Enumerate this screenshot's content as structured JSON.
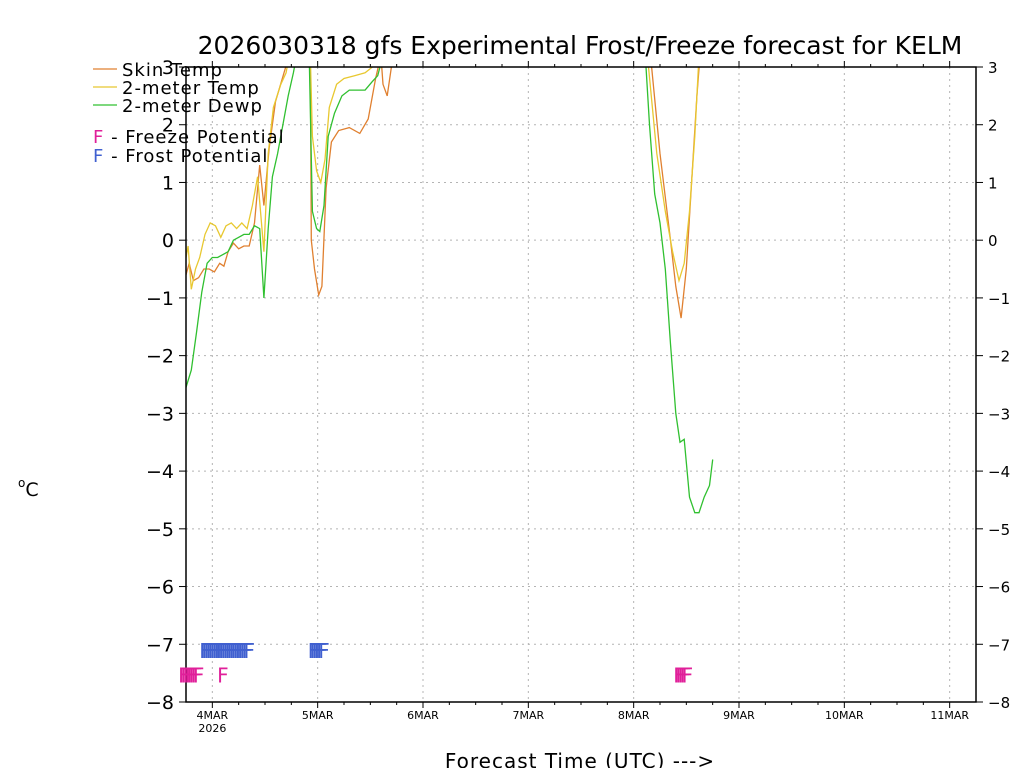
{
  "chart_data": {
    "type": "line",
    "title": "2026030318 gfs Experimental Frost/Freeze forecast for KELM",
    "ylabel_prefix": "o",
    "ylabel_unit": "C",
    "xlabel": "Forecast Time (UTC) --->",
    "ylim": [
      -8,
      3
    ],
    "yticks": [
      -8,
      -7,
      -6,
      -5,
      -4,
      -3,
      -2,
      -1,
      0,
      1,
      2,
      3
    ],
    "xlim": [
      3.75,
      11.25
    ],
    "xticks": [
      {
        "label": "4MAR",
        "sub": "2026",
        "x": 4.0
      },
      {
        "label": "5MAR",
        "x": 5.0
      },
      {
        "label": "6MAR",
        "x": 6.0
      },
      {
        "label": "7MAR",
        "x": 7.0
      },
      {
        "label": "8MAR",
        "x": 8.0
      },
      {
        "label": "9MAR",
        "x": 9.0
      },
      {
        "label": "10MAR",
        "x": 10.0
      },
      {
        "label": "11MAR",
        "x": 11.0
      }
    ],
    "grid": true,
    "legend": {
      "position": "top-left",
      "entries": [
        {
          "name": "Skin Temp",
          "color": "#e08030"
        },
        {
          "name": "2-meter Temp",
          "color": "#e8c830"
        },
        {
          "name": "2-meter Dewp",
          "color": "#30c030"
        }
      ],
      "potentials": [
        {
          "glyph": "F",
          "text": " - Freeze Potential",
          "color": "#e0209a"
        },
        {
          "glyph": "F",
          "text": " - Frost Potential",
          "color": "#4060d0"
        }
      ]
    },
    "series": [
      {
        "name": "Skin Temp",
        "color": "#e08030",
        "points": [
          [
            3.75,
            -0.6
          ],
          [
            3.78,
            -0.4
          ],
          [
            3.82,
            -0.7
          ],
          [
            3.87,
            -0.65
          ],
          [
            3.92,
            -0.5
          ],
          [
            3.97,
            -0.5
          ],
          [
            4.02,
            -0.55
          ],
          [
            4.07,
            -0.4
          ],
          [
            4.11,
            -0.45
          ],
          [
            4.15,
            -0.2
          ],
          [
            4.2,
            -0.05
          ],
          [
            4.25,
            -0.15
          ],
          [
            4.3,
            -0.1
          ],
          [
            4.35,
            -0.1
          ],
          [
            4.4,
            0.3
          ],
          [
            4.45,
            1.3
          ],
          [
            4.49,
            0.6
          ],
          [
            4.54,
            1.6
          ],
          [
            4.6,
            2.4
          ],
          [
            4.68,
            2.9
          ],
          [
            4.73,
            3.2
          ],
          [
            4.93,
            3.2
          ],
          [
            4.94,
            0.0
          ],
          [
            4.97,
            -0.5
          ],
          [
            5.01,
            -0.95
          ],
          [
            5.04,
            -0.8
          ],
          [
            5.08,
            0.9
          ],
          [
            5.13,
            1.7
          ],
          [
            5.2,
            1.9
          ],
          [
            5.3,
            1.95
          ],
          [
            5.4,
            1.85
          ],
          [
            5.48,
            2.1
          ],
          [
            5.55,
            2.8
          ],
          [
            5.6,
            3.2
          ],
          [
            5.62,
            2.7
          ],
          [
            5.66,
            2.5
          ],
          [
            5.7,
            3.0
          ],
          [
            5.73,
            3.2
          ],
          [
            8.16,
            3.2
          ],
          [
            8.25,
            1.5
          ],
          [
            8.35,
            0.0
          ],
          [
            8.4,
            -0.8
          ],
          [
            8.45,
            -1.35
          ],
          [
            8.5,
            -0.5
          ],
          [
            8.55,
            1.0
          ],
          [
            8.6,
            2.5
          ],
          [
            8.63,
            3.2
          ]
        ]
      },
      {
        "name": "2-meter Temp",
        "color": "#e8c830",
        "points": [
          [
            3.75,
            -0.3
          ],
          [
            3.77,
            -0.1
          ],
          [
            3.8,
            -0.85
          ],
          [
            3.84,
            -0.5
          ],
          [
            3.88,
            -0.3
          ],
          [
            3.93,
            0.1
          ],
          [
            3.98,
            0.3
          ],
          [
            4.03,
            0.25
          ],
          [
            4.08,
            0.05
          ],
          [
            4.13,
            0.25
          ],
          [
            4.18,
            0.3
          ],
          [
            4.23,
            0.2
          ],
          [
            4.28,
            0.3
          ],
          [
            4.33,
            0.2
          ],
          [
            4.38,
            0.6
          ],
          [
            4.43,
            1.1
          ],
          [
            4.49,
            -0.2
          ],
          [
            4.53,
            1.5
          ],
          [
            4.58,
            2.3
          ],
          [
            4.65,
            2.7
          ],
          [
            4.7,
            2.9
          ],
          [
            4.73,
            3.2
          ],
          [
            4.93,
            3.2
          ],
          [
            4.95,
            1.8
          ],
          [
            4.99,
            1.2
          ],
          [
            5.03,
            1.0
          ],
          [
            5.07,
            1.4
          ],
          [
            5.11,
            2.3
          ],
          [
            5.18,
            2.7
          ],
          [
            5.25,
            2.8
          ],
          [
            5.35,
            2.85
          ],
          [
            5.45,
            2.9
          ],
          [
            5.52,
            3.0
          ],
          [
            5.57,
            3.2
          ],
          [
            8.13,
            3.2
          ],
          [
            8.22,
            1.5
          ],
          [
            8.3,
            0.5
          ],
          [
            8.37,
            -0.2
          ],
          [
            8.43,
            -0.7
          ],
          [
            8.48,
            -0.4
          ],
          [
            8.53,
            0.5
          ],
          [
            8.58,
            1.8
          ],
          [
            8.62,
            3.2
          ]
        ]
      },
      {
        "name": "2-meter Dewp",
        "color": "#30c030",
        "points": [
          [
            3.75,
            -2.55
          ],
          [
            3.8,
            -2.25
          ],
          [
            3.85,
            -1.6
          ],
          [
            3.9,
            -0.9
          ],
          [
            3.95,
            -0.4
          ],
          [
            4.0,
            -0.3
          ],
          [
            4.05,
            -0.3
          ],
          [
            4.1,
            -0.25
          ],
          [
            4.15,
            -0.2
          ],
          [
            4.2,
            0.0
          ],
          [
            4.25,
            0.05
          ],
          [
            4.3,
            0.1
          ],
          [
            4.35,
            0.1
          ],
          [
            4.4,
            0.25
          ],
          [
            4.45,
            0.2
          ],
          [
            4.49,
            -1.0
          ],
          [
            4.53,
            0.2
          ],
          [
            4.57,
            1.1
          ],
          [
            4.62,
            1.5
          ],
          [
            4.67,
            2.0
          ],
          [
            4.72,
            2.5
          ],
          [
            4.77,
            2.9
          ],
          [
            4.8,
            3.2
          ],
          [
            4.92,
            3.2
          ],
          [
            4.95,
            0.5
          ],
          [
            4.99,
            0.2
          ],
          [
            5.02,
            0.15
          ],
          [
            5.06,
            0.6
          ],
          [
            5.1,
            1.8
          ],
          [
            5.16,
            2.2
          ],
          [
            5.23,
            2.5
          ],
          [
            5.3,
            2.6
          ],
          [
            5.38,
            2.6
          ],
          [
            5.45,
            2.6
          ],
          [
            5.52,
            2.75
          ],
          [
            5.57,
            2.85
          ],
          [
            5.62,
            3.2
          ],
          [
            8.11,
            3.2
          ],
          [
            8.15,
            2.0
          ],
          [
            8.2,
            0.8
          ],
          [
            8.25,
            0.3
          ],
          [
            8.3,
            -0.5
          ],
          [
            8.35,
            -1.8
          ],
          [
            8.4,
            -3.0
          ],
          [
            8.44,
            -3.5
          ],
          [
            8.48,
            -3.45
          ],
          [
            8.53,
            -4.45
          ],
          [
            8.58,
            -4.72
          ],
          [
            8.62,
            -4.72
          ],
          [
            8.67,
            -4.45
          ],
          [
            8.72,
            -4.25
          ],
          [
            8.75,
            -3.8
          ]
        ]
      }
    ],
    "freeze_marks": {
      "color": "#e0209a",
      "y": -7.52,
      "x": [
        3.73,
        3.75,
        3.77,
        3.79,
        3.81,
        3.83,
        3.85,
        3.87,
        4.1,
        8.43,
        8.45,
        8.47,
        8.49,
        8.51
      ]
    },
    "frost_marks": {
      "color": "#4060d0",
      "y": -7.1,
      "x": [
        3.93,
        3.95,
        3.97,
        3.99,
        4.01,
        4.03,
        4.05,
        4.07,
        4.09,
        4.11,
        4.13,
        4.15,
        4.17,
        4.19,
        4.21,
        4.23,
        4.25,
        4.27,
        4.29,
        4.31,
        4.33,
        4.35,
        4.96,
        4.98,
        5.0,
        5.02,
        5.04,
        5.06
      ]
    },
    "mark_glyph": "F"
  }
}
